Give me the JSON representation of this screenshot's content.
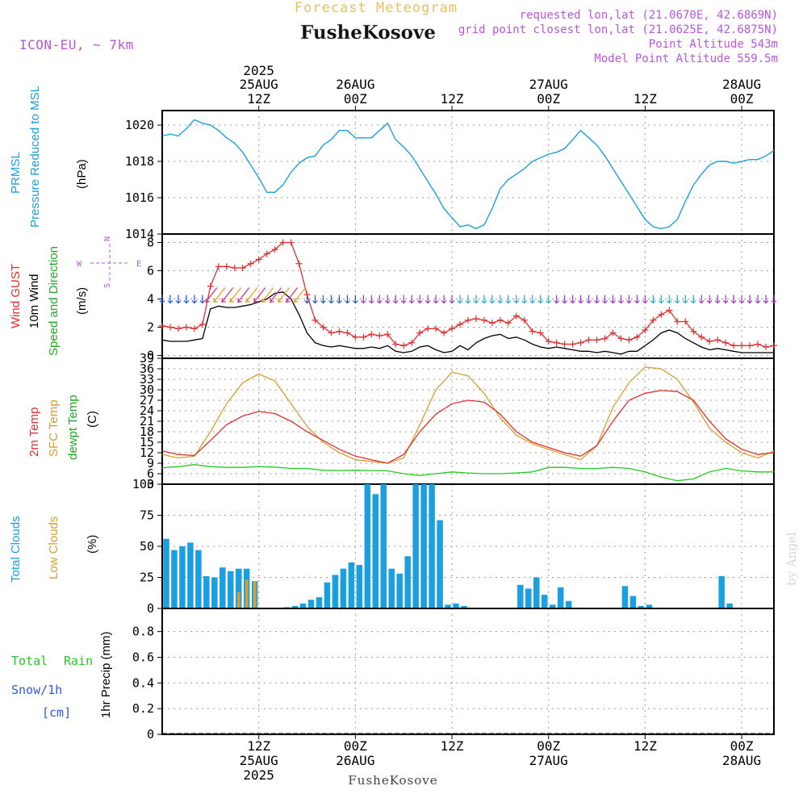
{
  "header": {
    "forecast_title": "Forecast Meteogram",
    "location": "FusheKosove",
    "model": "ICON-EU, ~ 7km",
    "requested": "requested lon,lat (21.0670E, 42.6869N)",
    "closest": "grid point closest lon,lat (21.0625E, 42.6875N)",
    "point_alt": "Point Altitude 543m",
    "model_alt": "Model Point Altitude 559.5m",
    "footer_location": "FusheKosove",
    "watermark": "by Angel"
  },
  "colors": {
    "pressure": "#1a9fe0",
    "gust": "#e03030",
    "wind": "#000000",
    "dir": "#22aa22",
    "t2m": "#e03030",
    "sfc": "#d4a030",
    "dewpt": "#22cc22",
    "total_clouds": "#1a9fe0",
    "low_clouds": "#d4a030",
    "rain": "#22cc22",
    "snow": "#3355ee",
    "meta": "#bb55dd",
    "title": "#e8c060"
  },
  "top_axis": [
    {
      "l1": "2025",
      "l2": "25AUG",
      "l3": "12Z",
      "h": 12
    },
    {
      "l1": "",
      "l2": "26AUG",
      "l3": "00Z",
      "h": 24
    },
    {
      "l1": "",
      "l2": "",
      "l3": "12Z",
      "h": 36
    },
    {
      "l1": "",
      "l2": "27AUG",
      "l3": "00Z",
      "h": 48
    },
    {
      "l1": "",
      "l2": "",
      "l3": "12Z",
      "h": 60
    },
    {
      "l1": "",
      "l2": "28AUG",
      "l3": "00Z",
      "h": 72
    }
  ],
  "bottom_axis": [
    {
      "l1": "12Z",
      "l2": "25AUG",
      "l3": "2025",
      "h": 12
    },
    {
      "l1": "00Z",
      "l2": "26AUG",
      "l3": "",
      "h": 24
    },
    {
      "l1": "12Z",
      "l2": "",
      "l3": "",
      "h": 36
    },
    {
      "l1": "00Z",
      "l2": "27AUG",
      "l3": "",
      "h": 48
    },
    {
      "l1": "12Z",
      "l2": "",
      "l3": "",
      "h": 60
    },
    {
      "l1": "00Z",
      "l2": "28AUG",
      "l3": "",
      "h": 72
    }
  ],
  "panels": {
    "pressure": {
      "labels": [
        "PRMSL",
        "Pressure Reduced to MSL"
      ],
      "unit": "(hPa)",
      "ticks": [
        "1014",
        "1016",
        "1018",
        "1020"
      ]
    },
    "wind": {
      "labels": [
        "Wind GUST",
        "10m Wind",
        "Speed and Direction"
      ],
      "unit": "(m/s)",
      "ticks": [
        "0",
        "2",
        "4",
        "6",
        "8"
      ],
      "compass": {
        "n": "N",
        "s": "S",
        "w": "W",
        "e": "E"
      }
    },
    "temp": {
      "labels": [
        "2m Temp",
        "SFC Temp",
        "dewpt Temp"
      ],
      "unit": "(C)",
      "ticks": [
        "3",
        "6",
        "9",
        "12",
        "15",
        "18",
        "21",
        "24",
        "27",
        "30",
        "33",
        "36",
        "39"
      ]
    },
    "clouds": {
      "labels": [
        "Total Clouds",
        "Low Clouds"
      ],
      "unit": "(%)",
      "ticks": [
        "0",
        "25",
        "50",
        "75",
        "100"
      ]
    },
    "precip": {
      "labels": [
        "Total",
        "Rain",
        "Snow/1h",
        "[cm]"
      ],
      "unit": "1hr Precip (mm)",
      "ticks": [
        "0",
        "0.2",
        "0.4",
        "0.6",
        "0.8"
      ]
    }
  },
  "chart_data": [
    {
      "type": "line",
      "panel": "pressure",
      "title": "PRMSL Pressure Reduced to MSL",
      "ylabel": "(hPa)",
      "ylim": [
        1014,
        1020.8
      ],
      "xlim": [
        0,
        76
      ],
      "x": [
        0,
        1,
        2,
        3,
        4,
        5,
        6,
        7,
        8,
        9,
        10,
        11,
        12,
        13,
        14,
        15,
        16,
        17,
        18,
        19,
        20,
        21,
        22,
        23,
        24,
        25,
        26,
        27,
        28,
        29,
        30,
        31,
        32,
        33,
        34,
        35,
        36,
        37,
        38,
        39,
        40,
        41,
        42,
        43,
        44,
        45,
        46,
        47,
        48,
        49,
        50,
        51,
        52,
        53,
        54,
        55,
        56,
        57,
        58,
        59,
        60,
        61,
        62,
        63,
        64,
        65,
        66,
        67,
        68,
        69,
        70,
        71,
        72,
        73,
        74,
        75,
        76
      ],
      "series": [
        {
          "name": "PRMSL",
          "values": [
            1019.4,
            1019.5,
            1019.4,
            1019.8,
            1020.3,
            1020.1,
            1020.0,
            1019.7,
            1019.3,
            1019.0,
            1018.5,
            1017.8,
            1017.1,
            1016.3,
            1016.3,
            1016.7,
            1017.4,
            1017.9,
            1018.2,
            1018.3,
            1018.9,
            1019.2,
            1019.7,
            1019.7,
            1019.3,
            1019.3,
            1019.3,
            1019.7,
            1020.1,
            1019.2,
            1018.8,
            1018.3,
            1017.6,
            1016.9,
            1016.2,
            1015.4,
            1014.9,
            1014.4,
            1014.5,
            1014.3,
            1014.5,
            1015.4,
            1016.5,
            1017.0,
            1017.3,
            1017.6,
            1018.0,
            1018.2,
            1018.4,
            1018.5,
            1018.7,
            1019.2,
            1019.7,
            1019.3,
            1018.9,
            1018.3,
            1017.6,
            1016.9,
            1016.2,
            1015.5,
            1014.8,
            1014.4,
            1014.3,
            1014.4,
            1014.8,
            1015.8,
            1016.7,
            1017.3,
            1017.8,
            1018.0,
            1018.0,
            1017.9,
            1018.0,
            1018.1,
            1018.1,
            1018.3,
            1018.6
          ]
        }
      ]
    },
    {
      "type": "line",
      "panel": "wind",
      "title": "Wind GUST, 10m Wind Speed and Direction",
      "ylabel": "(m/s)",
      "ylim": [
        -0.2,
        8.6
      ],
      "xlim": [
        0,
        76
      ],
      "x": [
        0,
        1,
        2,
        3,
        4,
        5,
        6,
        7,
        8,
        9,
        10,
        11,
        12,
        13,
        14,
        15,
        16,
        17,
        18,
        19,
        20,
        21,
        22,
        23,
        24,
        25,
        26,
        27,
        28,
        29,
        30,
        31,
        32,
        33,
        34,
        35,
        36,
        37,
        38,
        39,
        40,
        41,
        42,
        43,
        44,
        45,
        46,
        47,
        48,
        49,
        50,
        51,
        52,
        53,
        54,
        55,
        56,
        57,
        58,
        59,
        60,
        61,
        62,
        63,
        64,
        65,
        66,
        67,
        68,
        69,
        70,
        71,
        72,
        73,
        74,
        75,
        76
      ],
      "series": [
        {
          "name": "Wind GUST",
          "values": [
            2.1,
            2.0,
            1.9,
            2.0,
            1.9,
            2.2,
            4.9,
            6.3,
            6.3,
            6.2,
            6.2,
            6.5,
            6.8,
            7.2,
            7.5,
            8.0,
            8.0,
            6.5,
            4.3,
            2.5,
            2.0,
            1.6,
            1.7,
            1.6,
            1.3,
            1.3,
            1.5,
            1.4,
            1.5,
            0.8,
            0.7,
            0.9,
            1.6,
            1.9,
            1.9,
            1.6,
            1.9,
            2.2,
            2.5,
            2.6,
            2.5,
            2.3,
            2.5,
            2.3,
            2.8,
            2.5,
            1.7,
            1.6,
            1.0,
            0.9,
            0.8,
            0.8,
            0.9,
            1.1,
            1.1,
            1.2,
            1.6,
            1.2,
            1.1,
            1.3,
            1.8,
            2.5,
            2.9,
            3.2,
            2.4,
            2.4,
            1.7,
            1.3,
            1.0,
            1.1,
            0.9,
            0.7,
            0.7,
            0.7,
            0.8,
            0.6,
            0.7
          ]
        },
        {
          "name": "10m Wind",
          "values": [
            1.1,
            1.0,
            1.0,
            1.0,
            1.1,
            1.2,
            3.3,
            3.5,
            3.4,
            3.4,
            3.5,
            3.6,
            3.8,
            4.0,
            4.4,
            4.5,
            4.0,
            2.9,
            1.6,
            0.9,
            0.7,
            0.6,
            0.7,
            0.6,
            0.5,
            0.5,
            0.6,
            0.5,
            0.7,
            0.3,
            0.2,
            0.3,
            0.6,
            0.7,
            0.4,
            0.2,
            0.3,
            0.7,
            0.4,
            0.9,
            1.2,
            1.4,
            1.5,
            1.2,
            1.3,
            1.1,
            0.8,
            0.6,
            0.5,
            0.6,
            0.5,
            0.4,
            0.3,
            0.3,
            0.2,
            0.3,
            0.2,
            0.1,
            0.3,
            0.3,
            0.7,
            1.1,
            1.6,
            1.8,
            1.6,
            1.2,
            0.9,
            0.6,
            0.4,
            0.5,
            0.4,
            0.3,
            0.2,
            0.2,
            0.2,
            0.2,
            0.2
          ]
        }
      ]
    },
    {
      "type": "line",
      "panel": "temp",
      "title": "2m Temp, SFC Temp, dewpt Temp",
      "ylabel": "(C)",
      "ylim": [
        3,
        39
      ],
      "xlim": [
        0,
        76
      ],
      "x": [
        0,
        2,
        4,
        6,
        8,
        10,
        12,
        14,
        16,
        18,
        20,
        22,
        24,
        26,
        28,
        30,
        32,
        34,
        36,
        38,
        40,
        42,
        44,
        46,
        48,
        50,
        52,
        54,
        56,
        58,
        60,
        62,
        64,
        66,
        68,
        70,
        72,
        74,
        76
      ],
      "series": [
        {
          "name": "2m Temp",
          "values": [
            12.5,
            11.5,
            11.2,
            15.5,
            20.0,
            22.5,
            23.8,
            23.2,
            21.0,
            18.0,
            15.5,
            13.0,
            11.0,
            10.0,
            9.0,
            11.5,
            18.0,
            23.0,
            26.0,
            27.0,
            26.5,
            23.0,
            18.0,
            15.0,
            13.5,
            12.0,
            11.0,
            14.0,
            21.0,
            27.0,
            29.0,
            29.8,
            29.5,
            27.0,
            21.0,
            16.0,
            13.0,
            11.5,
            12.0
          ]
        },
        {
          "name": "SFC Temp",
          "values": [
            11.5,
            10.5,
            11.0,
            18.0,
            26.0,
            32.0,
            34.5,
            32.5,
            26.0,
            19.5,
            15.0,
            12.0,
            10.0,
            9.5,
            9.0,
            10.5,
            20.0,
            30.0,
            35.0,
            34.0,
            29.0,
            22.0,
            17.0,
            14.5,
            13.0,
            11.5,
            10.0,
            14.0,
            25.0,
            32.0,
            36.5,
            36.0,
            33.0,
            26.5,
            19.0,
            15.0,
            12.0,
            10.5,
            12.5
          ]
        },
        {
          "name": "dewpt Temp",
          "values": [
            7.7,
            8.0,
            8.6,
            8.0,
            7.8,
            7.8,
            8.0,
            7.9,
            7.5,
            7.5,
            7.0,
            6.9,
            7.0,
            6.9,
            6.8,
            6.0,
            5.5,
            6.0,
            6.5,
            6.2,
            6.0,
            6.0,
            6.2,
            6.5,
            7.8,
            7.8,
            7.5,
            7.5,
            7.8,
            7.5,
            6.5,
            5.0,
            4.0,
            4.5,
            6.5,
            7.5,
            6.8,
            6.5,
            6.5
          ]
        }
      ]
    },
    {
      "type": "bar",
      "panel": "clouds",
      "title": "Total Clouds, Low Clouds",
      "ylabel": "(%)",
      "ylim": [
        0,
        100
      ],
      "xlim": [
        0,
        76
      ],
      "x": [
        0,
        1,
        2,
        3,
        4,
        5,
        6,
        7,
        8,
        9,
        10,
        11,
        12,
        13,
        14,
        15,
        16,
        17,
        18,
        19,
        20,
        21,
        22,
        23,
        24,
        25,
        26,
        27,
        28,
        29,
        30,
        31,
        32,
        33,
        34,
        35,
        36,
        37,
        38,
        39,
        40,
        41,
        42,
        43,
        44,
        45,
        46,
        47,
        48,
        49,
        50,
        51,
        52,
        53,
        54,
        55,
        56,
        57,
        58,
        59,
        60,
        61,
        62,
        63,
        64,
        65,
        66,
        67,
        68,
        69,
        70,
        71,
        72,
        73,
        74,
        75
      ],
      "series": [
        {
          "name": "Total Clouds",
          "values": [
            56,
            47,
            50,
            53,
            47,
            26,
            25,
            33,
            30,
            32,
            32,
            22,
            0,
            0,
            0,
            1,
            2,
            4,
            7,
            9,
            21,
            27,
            32,
            37,
            35,
            100,
            92,
            100,
            32,
            28,
            42,
            100,
            100,
            100,
            71,
            3,
            4,
            2,
            0,
            0,
            0,
            0,
            0,
            0,
            19,
            16,
            25,
            11,
            3,
            17,
            6,
            0,
            0,
            0,
            0,
            0,
            0,
            18,
            10,
            2,
            3,
            0,
            0,
            0,
            0,
            0,
            0,
            0,
            0,
            26,
            4,
            0,
            0,
            0,
            0,
            0
          ]
        },
        {
          "name": "Low Clouds",
          "values": [
            0,
            0,
            0,
            0,
            0,
            0,
            0,
            0,
            0,
            13,
            23,
            22,
            0,
            0,
            0,
            0,
            0,
            0,
            0,
            0,
            0,
            0,
            0,
            0,
            0,
            0,
            0,
            0,
            0,
            0,
            0,
            0,
            0,
            0,
            0,
            0,
            0,
            0,
            0,
            0,
            0,
            0,
            0,
            0,
            0,
            0,
            0,
            0,
            0,
            0,
            0,
            0,
            0,
            0,
            0,
            0,
            0,
            0,
            0,
            0,
            0,
            0,
            0,
            0,
            0,
            0,
            0,
            0,
            0,
            0,
            0,
            0,
            0,
            0,
            0,
            0
          ]
        }
      ]
    },
    {
      "type": "bar",
      "panel": "precip",
      "title": "Total Rain Snow/1h [cm]",
      "ylabel": "1hr Precip (mm)",
      "ylim": [
        0,
        0.98
      ],
      "xlim": [
        0,
        76
      ],
      "series": [
        {
          "name": "Total",
          "values": []
        }
      ]
    }
  ]
}
